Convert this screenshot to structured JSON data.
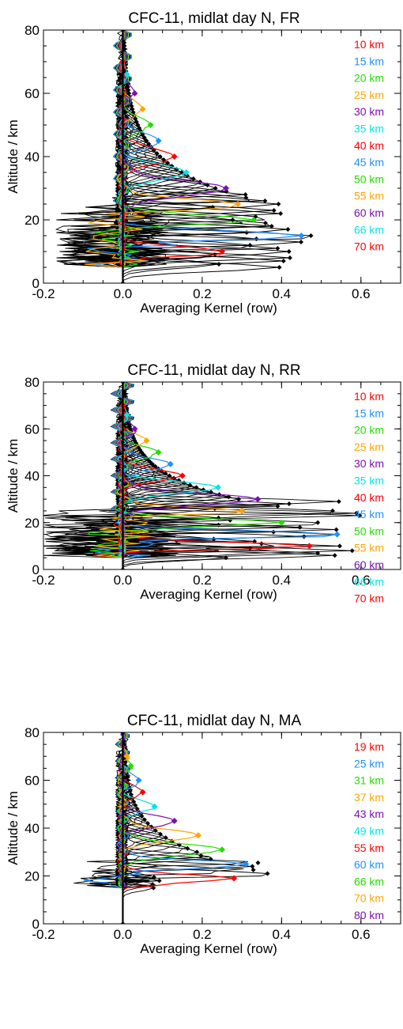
{
  "chart_data": [
    {
      "type": "line",
      "title": "CFC-11, midlat day N, FR",
      "xlabel": "Averaging Kernel (row)",
      "ylabel": "Altitude / km",
      "xlim": [
        -0.2,
        0.7
      ],
      "ylim": [
        0,
        80
      ],
      "xticks": [
        "-0.2",
        "0.0",
        "0.2",
        "0.4",
        "0.6"
      ],
      "yticks": [
        "0",
        "20",
        "40",
        "60",
        "80"
      ],
      "legend_position": "top-right",
      "series": [
        {
          "name": "10 km",
          "color": "#ff0000",
          "peak": {
            "x": 0.25,
            "y": 10
          }
        },
        {
          "name": "15 km",
          "color": "#1e90ff",
          "peak": {
            "x": 0.45,
            "y": 15
          }
        },
        {
          "name": "20 km",
          "color": "#22dd00",
          "peak": {
            "x": 0.33,
            "y": 20
          }
        },
        {
          "name": "25 km",
          "color": "#ffa500",
          "peak": {
            "x": 0.29,
            "y": 25
          }
        },
        {
          "name": "30 km",
          "color": "#7a10b0",
          "peak": {
            "x": 0.26,
            "y": 30
          }
        },
        {
          "name": "35 km",
          "color": "#00e5e5",
          "peak": {
            "x": 0.16,
            "y": 35
          }
        },
        {
          "name": "40 km",
          "color": "#ff0000",
          "peak": {
            "x": 0.13,
            "y": 40
          }
        },
        {
          "name": "45 km",
          "color": "#1e90ff",
          "peak": {
            "x": 0.09,
            "y": 45
          }
        },
        {
          "name": "50 km",
          "color": "#22dd00",
          "peak": {
            "x": 0.07,
            "y": 50
          }
        },
        {
          "name": "55 km",
          "color": "#ffa500",
          "peak": {
            "x": 0.05,
            "y": 55
          }
        },
        {
          "name": "60 km",
          "color": "#7a10b0",
          "peak": {
            "x": 0.03,
            "y": 60
          }
        },
        {
          "name": "66 km",
          "color": "#00e5e5",
          "peak": {
            "x": 0.01,
            "y": 66
          }
        },
        {
          "name": "70 km",
          "color": "#ff0000",
          "peak": {
            "x": 0.0,
            "y": 70
          }
        }
      ]
    },
    {
      "type": "line",
      "title": "CFC-11, midlat day N, RR",
      "xlabel": "Averaging Kernel (row)",
      "ylabel": "Altitude / km",
      "xlim": [
        -0.2,
        0.7
      ],
      "ylim": [
        0,
        80
      ],
      "xticks": [
        "-0.2",
        "0.0",
        "0.2",
        "0.4",
        "0.6"
      ],
      "yticks": [
        "0",
        "20",
        "40",
        "60",
        "80"
      ],
      "legend_position": "top-right",
      "series": [
        {
          "name": "10 km",
          "color": "#ff0000",
          "peak": {
            "x": 0.47,
            "y": 10
          }
        },
        {
          "name": "15 km",
          "color": "#1e90ff",
          "peak": {
            "x": 0.54,
            "y": 15
          }
        },
        {
          "name": "20 km",
          "color": "#22dd00",
          "peak": {
            "x": 0.4,
            "y": 20
          }
        },
        {
          "name": "25 km",
          "color": "#ffa500",
          "peak": {
            "x": 0.3,
            "y": 25
          }
        },
        {
          "name": "30 km",
          "color": "#7a10b0",
          "peak": {
            "x": 0.34,
            "y": 30
          }
        },
        {
          "name": "35 km",
          "color": "#00e5e5",
          "peak": {
            "x": 0.24,
            "y": 35
          }
        },
        {
          "name": "40 km",
          "color": "#ff0000",
          "peak": {
            "x": 0.15,
            "y": 40
          }
        },
        {
          "name": "45 km",
          "color": "#1e90ff",
          "peak": {
            "x": 0.12,
            "y": 45
          }
        },
        {
          "name": "50 km",
          "color": "#22dd00",
          "peak": {
            "x": 0.09,
            "y": 50
          }
        },
        {
          "name": "55 km",
          "color": "#ffa500",
          "peak": {
            "x": 0.06,
            "y": 55
          }
        },
        {
          "name": "60 km",
          "color": "#7a10b0",
          "peak": {
            "x": 0.03,
            "y": 60
          }
        },
        {
          "name": "66 km",
          "color": "#00e5e5",
          "peak": {
            "x": 0.01,
            "y": 66
          }
        },
        {
          "name": "70 km",
          "color": "#ff0000",
          "peak": {
            "x": 0.0,
            "y": 70
          }
        }
      ]
    },
    {
      "type": "line",
      "title": "CFC-11, midlat day N, MA",
      "xlabel": "Averaging Kernel (row)",
      "ylabel": "Altitude / km",
      "xlim": [
        -0.2,
        0.7
      ],
      "ylim": [
        0,
        80
      ],
      "xticks": [
        "-0.2",
        "0.0",
        "0.2",
        "0.4",
        "0.6"
      ],
      "yticks": [
        "0",
        "20",
        "40",
        "60",
        "80"
      ],
      "legend_position": "top-right",
      "series": [
        {
          "name": "19 km",
          "color": "#ff0000",
          "peak": {
            "x": 0.28,
            "y": 19
          }
        },
        {
          "name": "25 km",
          "color": "#1e90ff",
          "peak": {
            "x": 0.31,
            "y": 25
          }
        },
        {
          "name": "31 km",
          "color": "#22dd00",
          "peak": {
            "x": 0.25,
            "y": 31
          }
        },
        {
          "name": "37 km",
          "color": "#ffa500",
          "peak": {
            "x": 0.19,
            "y": 37
          }
        },
        {
          "name": "43 km",
          "color": "#7a10b0",
          "peak": {
            "x": 0.13,
            "y": 43
          }
        },
        {
          "name": "49 km",
          "color": "#00e5e5",
          "peak": {
            "x": 0.08,
            "y": 49
          }
        },
        {
          "name": "55 km",
          "color": "#ff0000",
          "peak": {
            "x": 0.05,
            "y": 55
          }
        },
        {
          "name": "60 km",
          "color": "#1e90ff",
          "peak": {
            "x": 0.04,
            "y": 60
          }
        },
        {
          "name": "66 km",
          "color": "#22dd00",
          "peak": {
            "x": 0.02,
            "y": 66
          }
        },
        {
          "name": "70 km",
          "color": "#ffa500",
          "peak": {
            "x": 0.01,
            "y": 70
          }
        },
        {
          "name": "80 km",
          "color": "#7a10b0",
          "peak": {
            "x": 0.0,
            "y": 80
          }
        }
      ]
    }
  ]
}
